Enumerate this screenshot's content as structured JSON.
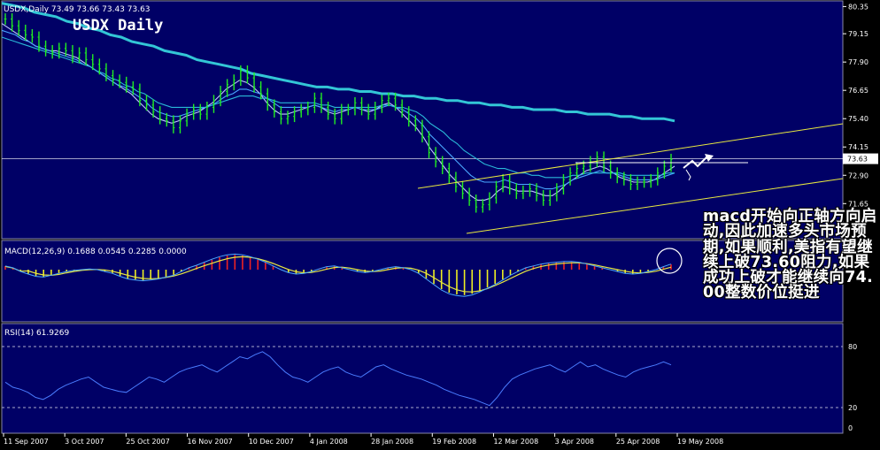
{
  "chart_data": {
    "type": "candlestick-with-indicators",
    "main": {
      "header": "USDX,Daily  73.49 73.66 73.43 73.63",
      "title": "USDX Daily",
      "ylim": [
        70.1,
        80.6
      ],
      "ticks": [
        "80.35",
        "79.15",
        "77.90",
        "76.65",
        "75.40",
        "74.15",
        "72.90",
        "71.65"
      ],
      "last_price": "73.63",
      "close_series": [
        79.8,
        79.5,
        79.3,
        79.1,
        79.0,
        78.6,
        78.4,
        78.3,
        78.5,
        78.4,
        78.1,
        78.3,
        78.0,
        77.8,
        77.6,
        77.3,
        77.1,
        77.0,
        76.8,
        76.7,
        76.2,
        76.0,
        75.7,
        75.4,
        75.3,
        75.0,
        75.3,
        75.6,
        75.8,
        75.6,
        75.9,
        76.2,
        76.6,
        76.9,
        77.1,
        77.5,
        77.2,
        76.8,
        76.5,
        76.0,
        75.7,
        75.4,
        75.5,
        75.7,
        75.8,
        75.9,
        76.3,
        75.9,
        75.6,
        75.4,
        75.8,
        75.8,
        76.1,
        75.8,
        75.6,
        75.9,
        76.2,
        76.3,
        76.0,
        75.7,
        75.3,
        75.1,
        74.6,
        73.9,
        73.5,
        73.2,
        72.8,
        72.4,
        72.1,
        71.8,
        71.5,
        71.6,
        71.9,
        72.4,
        72.7,
        72.3,
        72.1,
        72.2,
        72.3,
        72.0,
        71.8,
        72.0,
        72.3,
        72.7,
        73.0,
        73.2,
        73.3,
        73.5,
        73.7,
        73.3,
        73.0,
        72.8,
        72.7,
        72.5,
        72.6,
        72.6,
        72.7,
        73.0,
        73.3,
        73.6
      ],
      "ma_series": [
        {
          "name": "ema-fast",
          "color": "#c0c8ff",
          "values": [
            79.6,
            79.4,
            79.2,
            79.0,
            78.8,
            78.6,
            78.5,
            78.4,
            78.4,
            78.3,
            78.2,
            78.1,
            77.9,
            77.7,
            77.5,
            77.3,
            77.1,
            76.9,
            76.7,
            76.5,
            76.2,
            75.9,
            75.6,
            75.4,
            75.3,
            75.2,
            75.3,
            75.5,
            75.6,
            75.7,
            75.9,
            76.1,
            76.4,
            76.7,
            76.9,
            77.1,
            77.0,
            76.8,
            76.5,
            76.1,
            75.8,
            75.6,
            75.6,
            75.7,
            75.8,
            75.9,
            76.0,
            75.9,
            75.7,
            75.6,
            75.7,
            75.8,
            75.9,
            75.8,
            75.7,
            75.8,
            76.0,
            76.1,
            75.9,
            75.6,
            75.3,
            75.0,
            74.6,
            74.1,
            73.7,
            73.3,
            72.9,
            72.6,
            72.3,
            72.0,
            71.8,
            71.8,
            71.9,
            72.2,
            72.4,
            72.3,
            72.2,
            72.2,
            72.2,
            72.1,
            72.0,
            72.0,
            72.2,
            72.5,
            72.7,
            72.9,
            73.1,
            73.2,
            73.3,
            73.2,
            73.0,
            72.8,
            72.7,
            72.6,
            72.6,
            72.6,
            72.7,
            72.9,
            73.1,
            73.3
          ]
        },
        {
          "name": "ema-mid",
          "color": "#4aa8ff",
          "values": [
            79.3,
            79.2,
            79.1,
            78.9,
            78.8,
            78.6,
            78.5,
            78.4,
            78.3,
            78.2,
            78.1,
            78.0,
            77.8,
            77.7,
            77.5,
            77.3,
            77.1,
            76.9,
            76.8,
            76.6,
            76.4,
            76.2,
            75.9,
            75.7,
            75.6,
            75.5,
            75.5,
            75.6,
            75.7,
            75.8,
            75.9,
            76.0,
            76.2,
            76.4,
            76.5,
            76.7,
            76.7,
            76.6,
            76.5,
            76.3,
            76.1,
            75.9,
            75.9,
            75.9,
            75.9,
            75.9,
            76.0,
            75.9,
            75.8,
            75.7,
            75.8,
            75.8,
            75.9,
            75.8,
            75.8,
            75.8,
            75.9,
            76.0,
            75.9,
            75.8,
            75.6,
            75.4,
            75.1,
            74.7,
            74.4,
            74.1,
            73.8,
            73.5,
            73.2,
            72.9,
            72.7,
            72.6,
            72.6,
            72.6,
            72.7,
            72.6,
            72.5,
            72.5,
            72.5,
            72.4,
            72.3,
            72.3,
            72.4,
            72.5,
            72.7,
            72.8,
            72.9,
            73.0,
            73.1,
            73.0,
            73.0,
            72.9,
            72.8,
            72.7,
            72.7,
            72.7,
            72.7,
            72.8,
            72.9,
            73.0
          ]
        },
        {
          "name": "ema-slow",
          "color": "#2ab8d8",
          "values": [
            79.0,
            78.9,
            78.8,
            78.7,
            78.6,
            78.5,
            78.4,
            78.3,
            78.2,
            78.1,
            78.0,
            77.9,
            77.8,
            77.7,
            77.5,
            77.4,
            77.2,
            77.1,
            76.9,
            76.8,
            76.6,
            76.5,
            76.3,
            76.1,
            76.0,
            75.9,
            75.9,
            75.9,
            75.9,
            75.9,
            75.9,
            76.0,
            76.1,
            76.2,
            76.3,
            76.4,
            76.4,
            76.4,
            76.3,
            76.3,
            76.2,
            76.1,
            76.1,
            76.1,
            76.1,
            76.1,
            76.1,
            76.0,
            76.0,
            75.9,
            75.9,
            75.9,
            75.9,
            75.9,
            75.9,
            75.9,
            76.0,
            76.0,
            75.9,
            75.9,
            75.8,
            75.7,
            75.5,
            75.2,
            75.0,
            74.8,
            74.5,
            74.3,
            74.0,
            73.8,
            73.6,
            73.4,
            73.3,
            73.2,
            73.2,
            73.1,
            73.0,
            73.0,
            72.9,
            72.9,
            72.8,
            72.8,
            72.8,
            72.8,
            72.9,
            72.9,
            73.0,
            73.0,
            73.0,
            73.0,
            73.0,
            73.0,
            72.9,
            72.9,
            72.9,
            72.9,
            72.9,
            72.9,
            73.0,
            73.0
          ]
        },
        {
          "name": "ema-200",
          "color": "#33c6d6",
          "values": [
            80.5,
            80.4,
            80.3,
            80.1,
            80.0,
            79.9,
            79.7,
            79.6,
            79.4,
            79.3,
            79.1,
            79.0,
            78.8,
            78.7,
            78.6,
            78.4,
            78.3,
            78.2,
            78.0,
            77.9,
            77.8,
            77.7,
            77.6,
            77.4,
            77.3,
            77.2,
            77.1,
            77.0,
            76.9,
            76.8,
            76.8,
            76.7,
            76.7,
            76.6,
            76.6,
            76.5,
            76.5,
            76.4,
            76.4,
            76.3,
            76.3,
            76.2,
            76.2,
            76.1,
            76.1,
            76.0,
            76.0,
            75.9,
            75.9,
            75.8,
            75.8,
            75.8,
            75.7,
            75.7,
            75.6,
            75.6,
            75.6,
            75.5,
            75.5,
            75.4,
            75.4,
            75.4,
            75.3
          ]
        }
      ],
      "trendlines": {
        "color": "#e8e840"
      }
    },
    "macd": {
      "label": "MACD(12,26,9) 0.1688 0.0545 0.2285 0.0000",
      "values": [
        0.1,
        0.05,
        -0.05,
        -0.12,
        -0.18,
        -0.2,
        -0.15,
        -0.1,
        -0.05,
        -0.02,
        0.0,
        0.02,
        0.0,
        -0.05,
        -0.1,
        -0.18,
        -0.25,
        -0.28,
        -0.3,
        -0.28,
        -0.25,
        -0.2,
        -0.15,
        -0.05,
        0.05,
        0.12,
        0.2,
        0.28,
        0.35,
        0.4,
        0.42,
        0.4,
        0.35,
        0.28,
        0.2,
        0.1,
        0.0,
        -0.08,
        -0.12,
        -0.1,
        -0.05,
        0.02,
        0.08,
        0.1,
        0.05,
        0.0,
        -0.05,
        -0.08,
        -0.05,
        0.0,
        0.05,
        0.08,
        0.05,
        0.0,
        -0.1,
        -0.25,
        -0.4,
        -0.55,
        -0.65,
        -0.7,
        -0.72,
        -0.68,
        -0.6,
        -0.5,
        -0.4,
        -0.28,
        -0.15,
        -0.05,
        0.05,
        0.1,
        0.15,
        0.18,
        0.2,
        0.22,
        0.22,
        0.2,
        0.15,
        0.1,
        0.05,
        0.0,
        -0.05,
        -0.1,
        -0.12,
        -0.1,
        -0.05,
        0.0,
        0.08,
        0.15
      ]
    },
    "rsi": {
      "label": "RSI(14) 61.9269",
      "levels": [
        "80",
        "20",
        "0"
      ],
      "values": [
        45,
        40,
        38,
        35,
        30,
        28,
        32,
        38,
        42,
        45,
        48,
        50,
        45,
        40,
        38,
        36,
        35,
        40,
        45,
        50,
        48,
        45,
        50,
        55,
        58,
        60,
        62,
        58,
        55,
        60,
        65,
        70,
        68,
        72,
        75,
        70,
        62,
        55,
        50,
        48,
        45,
        50,
        55,
        58,
        60,
        55,
        52,
        50,
        55,
        60,
        62,
        58,
        55,
        52,
        50,
        48,
        45,
        42,
        38,
        35,
        32,
        30,
        28,
        25,
        22,
        30,
        40,
        48,
        52,
        55,
        58,
        60,
        62,
        58,
        55,
        60,
        65,
        60,
        62,
        58,
        55,
        52,
        50,
        55,
        58,
        60,
        62,
        65,
        62
      ]
    },
    "x_ticks": [
      "11 Sep 2007",
      "3 Oct 2007",
      "25 Oct 2007",
      "16 Nov 2007",
      "10 Dec 2007",
      "4 Jan 2008",
      "28 Jan 2008",
      "19 Feb 2008",
      "12 Mar 2008",
      "3 Apr 2008",
      "25 Apr 2008",
      "19 May 2008"
    ],
    "annotation": "macd开始向正轴方向启动,因此加速多头市场预期,如果顺利,美指有望继续上破73.60阻力,如果成功上破才能继续向74.00整数价位挺进"
  }
}
